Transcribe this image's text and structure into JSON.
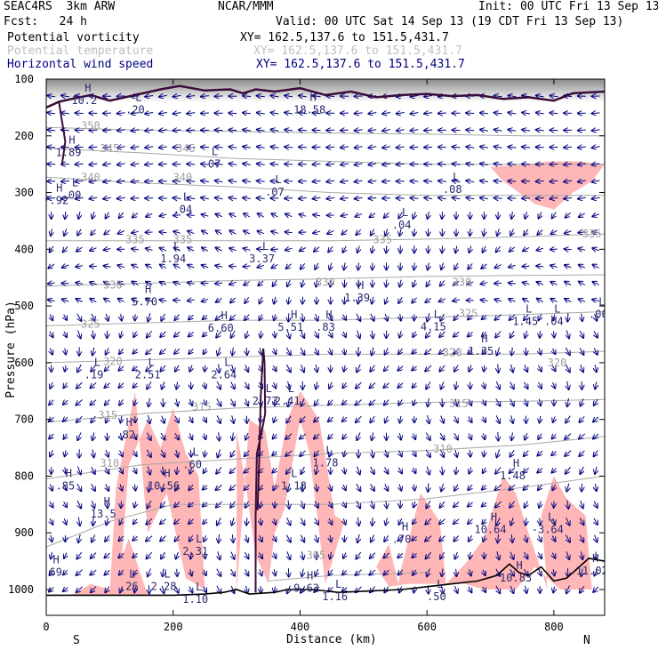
{
  "header": {
    "project": "SEAC4RS  3km ARW",
    "center": "NCAR/MMM",
    "init": "Init: 00 UTC Fri 13 Sep 13",
    "fcst": "Fcst:   24 h",
    "valid": "Valid: 00 UTC Sat 14 Sep 13 (19 CDT Fri 13 Sep 13)"
  },
  "legend": [
    {
      "name": "Potential vorticity",
      "xy": "XY= 162.5,137.6 to 151.5,431.7",
      "color": "#000000"
    },
    {
      "name": "Potential temperature",
      "xy": "XY= 162.5,137.6 to 151.5,431.7",
      "color": "#b0b0b0"
    },
    {
      "name": "Horizontal wind speed",
      "xy": "XY= 162.5,137.6 to 151.5,431.7",
      "color": "#000080"
    }
  ],
  "chart_data": {
    "type": "cross-section",
    "xlabel": "Distance (km)",
    "ylabel": "Pressure (hPa)",
    "xlim": [
      0,
      880
    ],
    "ylim": [
      1050,
      100
    ],
    "x_ticks": [
      0,
      200,
      400,
      600,
      800
    ],
    "y_ticks": [
      100,
      200,
      300,
      400,
      500,
      600,
      700,
      800,
      900,
      1000
    ],
    "x_end_labels": {
      "left": "S",
      "right": "N"
    },
    "colors": {
      "pv_fill": "#ffb6b6",
      "theta": "#a8a8a8",
      "wind": "#000080",
      "pv_contour": "#3a0c3a",
      "terrain": "#000000",
      "label": "#2a2a70"
    },
    "theta_contours": [
      {
        "label": "350",
        "points": [
          [
            0,
            185
          ],
          [
            150,
            190
          ],
          [
            300,
            192
          ],
          [
            450,
            195
          ],
          [
            600,
            197
          ],
          [
            750,
            200
          ],
          [
            880,
            200
          ]
        ]
      },
      {
        "label": "345",
        "points": [
          [
            0,
            222
          ],
          [
            150,
            230
          ],
          [
            300,
            240
          ],
          [
            450,
            245
          ],
          [
            600,
            250
          ],
          [
            750,
            250
          ],
          [
            880,
            250
          ]
        ]
      },
      {
        "label": "340",
        "points": [
          [
            0,
            273
          ],
          [
            150,
            283
          ],
          [
            300,
            290
          ],
          [
            450,
            300
          ],
          [
            600,
            305
          ],
          [
            750,
            305
          ],
          [
            880,
            305
          ]
        ]
      },
      {
        "label": "335",
        "points": [
          [
            0,
            385
          ],
          [
            150,
            385
          ],
          [
            300,
            385
          ],
          [
            450,
            385
          ],
          [
            600,
            382
          ],
          [
            750,
            378
          ],
          [
            880,
            373
          ]
        ]
      },
      {
        "label": "330",
        "points": [
          [
            0,
            465
          ],
          [
            150,
            460
          ],
          [
            300,
            455
          ],
          [
            450,
            452
          ],
          [
            600,
            448
          ],
          [
            750,
            446
          ],
          [
            880,
            445
          ]
        ]
      },
      {
        "label": "325",
        "points": [
          [
            0,
            535
          ],
          [
            150,
            530
          ],
          [
            300,
            525
          ],
          [
            450,
            525
          ],
          [
            600,
            520
          ],
          [
            750,
            515
          ],
          [
            880,
            510
          ]
        ]
      },
      {
        "label": "320",
        "points": [
          [
            0,
            600
          ],
          [
            150,
            595
          ],
          [
            300,
            590
          ],
          [
            450,
            585
          ],
          [
            600,
            585
          ],
          [
            750,
            585
          ],
          [
            880,
            580
          ]
        ]
      },
      {
        "label": "315",
        "points": [
          [
            0,
            705
          ],
          [
            150,
            690
          ],
          [
            300,
            680
          ],
          [
            450,
            675
          ],
          [
            600,
            670
          ],
          [
            750,
            668
          ],
          [
            880,
            665
          ]
        ]
      },
      {
        "label": "310",
        "points": [
          [
            0,
            805
          ],
          [
            150,
            780
          ],
          [
            300,
            770
          ],
          [
            450,
            760
          ],
          [
            600,
            755
          ],
          [
            750,
            745
          ],
          [
            880,
            730
          ]
        ]
      },
      {
        "label": "305",
        "points": [
          [
            0,
            925
          ],
          [
            100,
            880
          ],
          [
            200,
            850
          ],
          [
            300,
            850
          ],
          [
            450,
            850
          ],
          [
            600,
            840
          ],
          [
            750,
            820
          ],
          [
            880,
            800
          ]
        ]
      },
      {
        "label": "300",
        "points": [
          [
            350,
            985
          ],
          [
            450,
            975
          ],
          [
            600,
            970
          ]
        ]
      }
    ],
    "theta_labels": [
      {
        "t": "350",
        "x": 70,
        "p": 182
      },
      {
        "t": "345",
        "x": 100,
        "p": 222
      },
      {
        "t": "345",
        "x": 220,
        "p": 222
      },
      {
        "t": "340",
        "x": 70,
        "p": 273
      },
      {
        "t": "340",
        "x": 215,
        "p": 273
      },
      {
        "t": "335",
        "x": 140,
        "p": 383
      },
      {
        "t": "335",
        "x": 215,
        "p": 383
      },
      {
        "t": "335",
        "x": 530,
        "p": 383
      },
      {
        "t": "335",
        "x": 860,
        "p": 373
      },
      {
        "t": "330",
        "x": 105,
        "p": 463
      },
      {
        "t": "330",
        "x": 440,
        "p": 458
      },
      {
        "t": "330",
        "x": 655,
        "p": 458
      },
      {
        "t": "325",
        "x": 70,
        "p": 532
      },
      {
        "t": "325",
        "x": 665,
        "p": 513
      },
      {
        "t": "320",
        "x": 105,
        "p": 598
      },
      {
        "t": "320",
        "x": 640,
        "p": 582
      },
      {
        "t": "320",
        "x": 805,
        "p": 600
      },
      {
        "t": "315",
        "x": 97,
        "p": 693
      },
      {
        "t": "315",
        "x": 245,
        "p": 678
      },
      {
        "t": "315",
        "x": 650,
        "p": 672
      },
      {
        "t": "310",
        "x": 100,
        "p": 777
      },
      {
        "t": "310",
        "x": 625,
        "p": 752
      },
      {
        "t": "305",
        "x": 425,
        "p": 940
      }
    ],
    "pv_contours": [
      [
        [
          0,
          150
        ],
        [
          20,
          140
        ],
        [
          40,
          135
        ],
        [
          70,
          128
        ],
        [
          100,
          138
        ],
        [
          140,
          128
        ],
        [
          180,
          118
        ],
        [
          210,
          112
        ],
        [
          250,
          120
        ],
        [
          290,
          118
        ],
        [
          310,
          125
        ],
        [
          330,
          118
        ],
        [
          360,
          122
        ],
        [
          400,
          116
        ],
        [
          440,
          128
        ],
        [
          480,
          122
        ],
        [
          520,
          132
        ],
        [
          560,
          128
        ],
        [
          600,
          126
        ],
        [
          640,
          130
        ],
        [
          680,
          128
        ],
        [
          720,
          135
        ],
        [
          760,
          132
        ],
        [
          800,
          138
        ],
        [
          830,
          125
        ],
        [
          880,
          122
        ]
      ],
      [
        [
          20,
          140
        ],
        [
          30,
          210
        ],
        [
          25,
          250
        ]
      ],
      [
        [
          330,
          1005
        ],
        [
          330,
          870
        ],
        [
          332,
          760
        ],
        [
          340,
          720
        ],
        [
          345,
          690
        ],
        [
          344,
          600
        ],
        [
          342,
          575
        ],
        [
          338,
          660
        ],
        [
          336,
          760
        ],
        [
          333,
          860
        ]
      ]
    ],
    "terrain": [
      [
        0,
        1010
      ],
      [
        100,
        1010
      ],
      [
        200,
        1010
      ],
      [
        250,
        1008
      ],
      [
        280,
        1005
      ],
      [
        300,
        1000
      ],
      [
        320,
        1008
      ],
      [
        360,
        1005
      ],
      [
        380,
        1000
      ],
      [
        420,
        1000
      ],
      [
        460,
        1005
      ],
      [
        500,
        1003
      ],
      [
        560,
        1000
      ],
      [
        600,
        995
      ],
      [
        640,
        990
      ],
      [
        680,
        985
      ],
      [
        710,
        975
      ],
      [
        730,
        955
      ],
      [
        745,
        970
      ],
      [
        760,
        975
      ],
      [
        780,
        960
      ],
      [
        800,
        985
      ],
      [
        820,
        980
      ],
      [
        840,
        960
      ],
      [
        855,
        945
      ],
      [
        870,
        948
      ],
      [
        880,
        950
      ]
    ],
    "pv_fill_regions": [
      [
        [
          40,
          1010
        ],
        [
          70,
          990
        ],
        [
          100,
          1000
        ],
        [
          130,
          910
        ],
        [
          160,
          1010
        ]
      ],
      [
        [
          100,
          1005
        ],
        [
          110,
          820
        ],
        [
          140,
          650
        ],
        [
          160,
          900
        ],
        [
          190,
          830
        ],
        [
          220,
          980
        ],
        [
          250,
          1000
        ],
        [
          240,
          800
        ],
        [
          220,
          760
        ],
        [
          200,
          680
        ],
        [
          180,
          750
        ],
        [
          160,
          700
        ],
        [
          130,
          780
        ],
        [
          115,
          1005
        ]
      ],
      [
        [
          300,
          1005
        ],
        [
          300,
          720
        ],
        [
          315,
          820
        ],
        [
          330,
          940
        ],
        [
          350,
          990
        ],
        [
          360,
          900
        ],
        [
          375,
          860
        ],
        [
          400,
          700
        ],
        [
          415,
          760
        ],
        [
          440,
          990
        ],
        [
          470,
          880
        ],
        [
          455,
          870
        ],
        [
          430,
          700
        ],
        [
          400,
          650
        ],
        [
          380,
          700
        ],
        [
          360,
          820
        ],
        [
          345,
          720
        ],
        [
          320,
          700
        ]
      ],
      [
        [
          520,
          960
        ],
        [
          540,
          920
        ],
        [
          555,
          990
        ],
        [
          560,
          960
        ],
        [
          590,
          830
        ],
        [
          620,
          880
        ],
        [
          630,
          990
        ],
        [
          660,
          955
        ],
        [
          690,
          910
        ],
        [
          720,
          800
        ],
        [
          740,
          830
        ],
        [
          760,
          900
        ],
        [
          790,
          1000
        ],
        [
          780,
          870
        ],
        [
          800,
          800
        ],
        [
          820,
          840
        ],
        [
          850,
          870
        ],
        [
          860,
          1000
        ],
        [
          810,
          1000
        ],
        [
          770,
          960
        ],
        [
          740,
          1000
        ],
        [
          690,
          1000
        ],
        [
          660,
          990
        ],
        [
          600,
          990
        ],
        [
          570,
          990
        ],
        [
          540,
          995
        ]
      ],
      [
        [
          760,
          250
        ],
        [
          790,
          245
        ],
        [
          840,
          245
        ],
        [
          880,
          250
        ],
        [
          860,
          280
        ],
        [
          830,
          300
        ],
        [
          800,
          330
        ],
        [
          770,
          320
        ],
        [
          745,
          300
        ],
        [
          720,
          280
        ],
        [
          700,
          255
        ]
      ]
    ],
    "hl_markers": [
      {
        "t": "H",
        "v": "10.2",
        "x": 60,
        "p": 128
      },
      {
        "t": "L",
        "v": ".20",
        "x": 140,
        "p": 145
      },
      {
        "t": "H",
        "v": "1.89",
        "x": 35,
        "p": 220
      },
      {
        "t": "L",
        "v": ".07",
        "x": 260,
        "p": 240
      },
      {
        "t": "H",
        "v": "7.92",
        "x": 15,
        "p": 305
      },
      {
        "t": "L",
        "v": ".00",
        "x": 40,
        "p": 295
      },
      {
        "t": "L",
        "v": ".04",
        "x": 215,
        "p": 320
      },
      {
        "t": "L",
        "v": ".07",
        "x": 360,
        "p": 290
      },
      {
        "t": "H",
        "v": "18.58",
        "x": 415,
        "p": 145
      },
      {
        "t": "L",
        "v": ".08",
        "x": 640,
        "p": 285
      },
      {
        "t": "L",
        "v": ".04",
        "x": 560,
        "p": 348
      },
      {
        "t": "L",
        "v": "1.94",
        "x": 200,
        "p": 407
      },
      {
        "t": "L",
        "v": "3.37",
        "x": 340,
        "p": 407
      },
      {
        "t": "H",
        "v": "5.70",
        "x": 155,
        "p": 483
      },
      {
        "t": "H",
        "v": "1.39",
        "x": 490,
        "p": 476
      },
      {
        "t": "H",
        "v": "6.60",
        "x": 275,
        "p": 530
      },
      {
        "t": "H",
        "v": "5.51",
        "x": 385,
        "p": 528
      },
      {
        "t": "H",
        "v": ".83",
        "x": 440,
        "p": 528
      },
      {
        "t": "L",
        "v": "4.15",
        "x": 610,
        "p": 527
      },
      {
        "t": "L",
        "v": "1.45",
        "x": 755,
        "p": 518
      },
      {
        "t": "L",
        "v": ".04",
        "x": 800,
        "p": 518
      },
      {
        "t": "L",
        "v": ".06",
        "x": 870,
        "p": 505
      },
      {
        "t": "H",
        "v": "1.35",
        "x": 685,
        "p": 570
      },
      {
        "t": "L",
        "v": ".19",
        "x": 75,
        "p": 612
      },
      {
        "t": "L",
        "v": "2.51",
        "x": 160,
        "p": 612
      },
      {
        "t": "L",
        "v": "2.64",
        "x": 280,
        "p": 612
      },
      {
        "t": "L",
        "v": "2.72",
        "x": 345,
        "p": 658
      },
      {
        "t": "L",
        "v": "2.41",
        "x": 380,
        "p": 658
      },
      {
        "t": "H",
        "v": ".82",
        "x": 125,
        "p": 718
      },
      {
        "t": "L",
        "v": ".60",
        "x": 230,
        "p": 770
      },
      {
        "t": "L",
        "v": "1.78",
        "x": 440,
        "p": 767
      },
      {
        "t": "H",
        "v": "1.48",
        "x": 735,
        "p": 790
      },
      {
        "t": "H",
        "v": ".85",
        "x": 30,
        "p": 808
      },
      {
        "t": "H",
        "v": "10.56",
        "x": 185,
        "p": 808
      },
      {
        "t": "L",
        "v": "-1.18",
        "x": 385,
        "p": 808
      },
      {
        "t": "H",
        "v": "13.5",
        "x": 90,
        "p": 857
      },
      {
        "t": "H",
        "v": ".70",
        "x": 560,
        "p": 902
      },
      {
        "t": "H",
        "v": "10.64",
        "x": 700,
        "p": 885
      },
      {
        "t": "L",
        "v": "-3.64",
        "x": 790,
        "p": 885
      },
      {
        "t": "L",
        "v": "2.31",
        "x": 235,
        "p": 923
      },
      {
        "t": "H",
        "v": ".69",
        "x": 10,
        "p": 960
      },
      {
        "t": "H",
        "v": "10.83",
        "x": 740,
        "p": 970
      },
      {
        "t": "H",
        "v": "11.02",
        "x": 860,
        "p": 958
      },
      {
        "t": "L",
        "v": ".26",
        "x": 130,
        "p": 985
      },
      {
        "t": "L",
        "v": "2.28",
        "x": 185,
        "p": 985
      },
      {
        "t": "H",
        "v": "9.63",
        "x": 410,
        "p": 988
      },
      {
        "t": "L",
        "v": "1.10",
        "x": 235,
        "p": 1008
      },
      {
        "t": "L",
        "v": "1.16",
        "x": 455,
        "p": 1003
      },
      {
        "t": "L",
        "v": ".50",
        "x": 615,
        "p": 1003
      }
    ],
    "wind_note": "arrows show wind direction; upper levels mostly westward-pointing, lower levels mostly southward/downward"
  }
}
